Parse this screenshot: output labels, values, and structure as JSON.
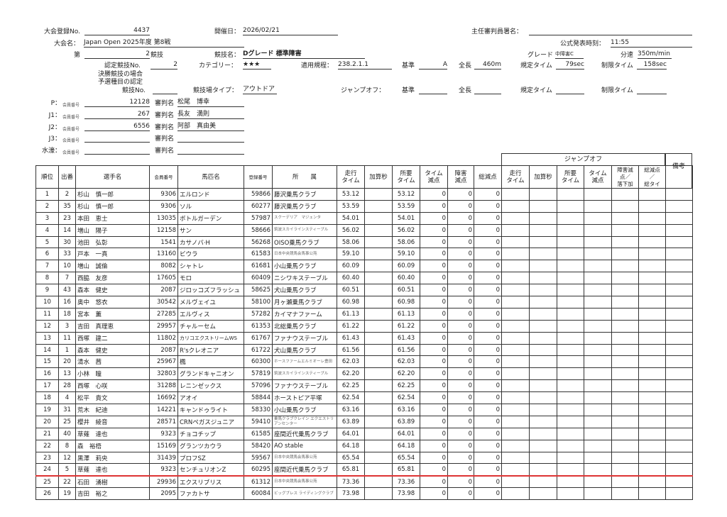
{
  "header": {
    "reg_no_label": "大会登録No.",
    "reg_no": "4437",
    "date_label": "開催日：",
    "date": "2026/02/21",
    "chief_label": "主任審判員署名：",
    "event_label": "大会名：",
    "event": "Japan Open 2025年度 第8戦",
    "announce_label": "公式発表時刻：",
    "announce": "11:55",
    "comp_prefix": "第",
    "comp_no": "2",
    "comp_suffix": "競技",
    "comp_name_label": "競技名：",
    "comp_name": "Dグレード 標準障害",
    "grade_label": "グレード",
    "grade": "中障害C",
    "speed_label": "分速",
    "speed": "350m/min",
    "cert_label": "認定競技No.",
    "cert_no": "2",
    "category_label": "カテゴリー：",
    "category": "★★★",
    "rule_label": "適用規程：",
    "rule": "238.2.1.1",
    "std_label": "基準",
    "std": "A",
    "length_label": "全長",
    "length": "460m",
    "time_label": "規定タイム",
    "time": "79sec",
    "limit_label": "制限タイム",
    "limit": "158sec",
    "final_label1": "決勝競技の場合",
    "final_label2": "予選種目の認定",
    "final_label3": "競技No.",
    "arena_label": "競技場タイプ：",
    "arena": "アウトドア",
    "jo_label": "ジャンプオフ：",
    "jo_std_label": "基準",
    "jo_length_label": "全長",
    "jo_time_label": "規定タイム",
    "jo_limit_label": "制限タイム"
  },
  "judges": [
    {
      "role": "P：",
      "member_label": "会員番号",
      "member": "12128",
      "name_label": "審判名",
      "name": "松尾　博幸"
    },
    {
      "role": "J1：",
      "member_label": "会員番号",
      "member": "267",
      "name_label": "審判名",
      "name": "長友　満則"
    },
    {
      "role": "J2：",
      "member_label": "会員番号",
      "member": "6556",
      "name_label": "審判名",
      "name": "阿部　真由美"
    },
    {
      "role": "J3：",
      "member_label": "会員番号",
      "member": "",
      "name_label": "審判名",
      "name": ""
    },
    {
      "role": "水濠：",
      "member_label": "会員番号",
      "member": "",
      "name_label": "審判名",
      "name": ""
    }
  ],
  "table": {
    "jumpoff_label": "ジャンプオフ",
    "remarks_label": "備考",
    "columns": [
      "順位",
      "出番",
      "選手名",
      "会員番号",
      "馬匹名",
      "登録番号",
      "所　　属",
      "走行\nタイム",
      "加算秒",
      "所要\nタイム",
      "タイム\n減点",
      "障害\n減点",
      "総減点",
      "走行\nタイム",
      "加算秒",
      "所要\nタイム",
      "タイム\n減点",
      "障害減\n点／\n落下加",
      "総減点\n／\n総タイ"
    ],
    "rows": [
      [
        "1",
        "2",
        "杉山　慎一郎",
        "9306",
        "エルロンド",
        "59866",
        "藤沢乗馬クラブ",
        "53.12",
        "",
        "53.12",
        "0",
        "0",
        "0"
      ],
      [
        "2",
        "35",
        "杉山　慎一郎",
        "9306",
        "ソル",
        "60277",
        "藤沢乗馬クラブ",
        "53.59",
        "",
        "53.59",
        "0",
        "0",
        "0"
      ],
      [
        "3",
        "23",
        "本田　恵士",
        "13035",
        "ボトルガーデン",
        "57987",
        "スクーデリア　マジェンタ",
        "54.01",
        "",
        "54.01",
        "0",
        "0",
        "0"
      ],
      [
        "4",
        "14",
        "増山　陽子",
        "12158",
        "サン",
        "58666",
        "筑波スカイラインスティーブル",
        "56.02",
        "",
        "56.02",
        "0",
        "0",
        "0"
      ],
      [
        "5",
        "30",
        "池田　弘彰",
        "1541",
        "カサノバ·H",
        "56268",
        "OISO乗馬クラブ",
        "58.06",
        "",
        "58.06",
        "0",
        "0",
        "0"
      ],
      [
        "6",
        "33",
        "戸本　一真",
        "13160",
        "ビウラ",
        "61583",
        "日本中央競馬会馬事公苑",
        "59.10",
        "",
        "59.10",
        "0",
        "0",
        "0"
      ],
      [
        "7",
        "10",
        "増山　誠倫",
        "8082",
        "シャトレ",
        "61681",
        "小山乗馬クラブ",
        "60.09",
        "",
        "60.09",
        "0",
        "0",
        "0"
      ],
      [
        "8",
        "7",
        "西脇　友彦",
        "17605",
        "モロ",
        "60409",
        "ニシワキステーブル",
        "60.40",
        "",
        "60.40",
        "0",
        "0",
        "0"
      ],
      [
        "9",
        "43",
        "森本　健史",
        "2087",
        "ジロッコズフラッシュ",
        "58625",
        "犬山乗馬クラブ",
        "60.51",
        "",
        "60.51",
        "0",
        "0",
        "0"
      ],
      [
        "10",
        "16",
        "奥中　悠衣",
        "30542",
        "メルヴェイユ",
        "58100",
        "月ヶ瀬乗馬クラブ",
        "60.98",
        "",
        "60.98",
        "0",
        "0",
        "0"
      ],
      [
        "11",
        "18",
        "宮本　薫",
        "27285",
        "エルヴィス",
        "57282",
        "カイマナファーム",
        "61.13",
        "",
        "61.13",
        "0",
        "0",
        "0"
      ],
      [
        "12",
        "3",
        "吉田　真理恵",
        "29957",
        "チャルーセム",
        "61353",
        "北総乗馬クラブ",
        "61.22",
        "",
        "61.22",
        "0",
        "0",
        "0"
      ],
      [
        "13",
        "11",
        "西塚　建二",
        "11802",
        "カリコエクストリームWS",
        "61767",
        "ファナウステーブル",
        "61.43",
        "",
        "61.43",
        "0",
        "0",
        "0"
      ],
      [
        "14",
        "1",
        "森本　健史",
        "2087",
        "R'sクレオニア",
        "61722",
        "犬山乗馬クラブ",
        "61.56",
        "",
        "61.56",
        "0",
        "0",
        "0"
      ],
      [
        "15",
        "20",
        "清水　茜",
        "25967",
        "楓",
        "60300",
        "ホースファームエルミオーレ豊田",
        "62.03",
        "",
        "62.03",
        "0",
        "0",
        "0"
      ],
      [
        "16",
        "13",
        "小林　瞳",
        "32803",
        "グランドキャニオン",
        "57819",
        "筑波スカイラインスティーブル",
        "62.20",
        "",
        "62.20",
        "0",
        "0",
        "0"
      ],
      [
        "17",
        "28",
        "西塚　心咲",
        "31288",
        "レニンゼックス",
        "57096",
        "ファナウステーブル",
        "62.25",
        "",
        "62.25",
        "0",
        "0",
        "0"
      ],
      [
        "18",
        "4",
        "松平　貴文",
        "16692",
        "アオイ",
        "58844",
        "ホーストピア平塚",
        "62.54",
        "",
        "62.54",
        "0",
        "0",
        "0"
      ],
      [
        "19",
        "31",
        "荒木　紀迪",
        "14221",
        "キャンドゥライト",
        "58330",
        "小山乗馬クラブ",
        "63.16",
        "",
        "63.16",
        "0",
        "0",
        "0"
      ],
      [
        "20",
        "25",
        "櫻井　綾音",
        "28571",
        "CRNペガスジュニア",
        "59410",
        "乗馬クラブクレイン エクエストリアンセンター",
        "63.89",
        "",
        "63.89",
        "0",
        "0",
        "0"
      ],
      [
        "21",
        "40",
        "草薙　達也",
        "9323",
        "チョコチップ",
        "61585",
        "座間近代乗馬クラブ",
        "64.01",
        "",
        "64.01",
        "0",
        "0",
        "0"
      ],
      [
        "22",
        "8",
        "森　裕梧",
        "15169",
        "グランツカウラ",
        "58420",
        "AO stable",
        "64.18",
        "",
        "64.18",
        "0",
        "0",
        "0"
      ],
      [
        "23",
        "12",
        "黒澤　莉央",
        "31439",
        "プロフSZ",
        "59567",
        "日本中央競馬会馬事公苑",
        "65.54",
        "",
        "65.54",
        "0",
        "0",
        "0"
      ],
      [
        "24",
        "5",
        "草薙　達也",
        "9323",
        "センチュリオンZ",
        "60295",
        "座間近代乗馬クラブ",
        "65.81",
        "",
        "65.81",
        "0",
        "0",
        "0"
      ],
      [
        "25",
        "22",
        "石田　湧樹",
        "29936",
        "エクスリブリス",
        "61312",
        "日本中央競馬会馬事公苑",
        "73.36",
        "",
        "73.36",
        "0",
        "0",
        "0"
      ],
      [
        "26",
        "19",
        "吉田　裕之",
        "2095",
        "ファカトサ",
        "60084",
        "ビッグブレス ライディングクラブ",
        "73.98",
        "",
        "73.98",
        "0",
        "0",
        "0"
      ]
    ]
  },
  "colors": {
    "cutoff_line": "#d33333"
  }
}
